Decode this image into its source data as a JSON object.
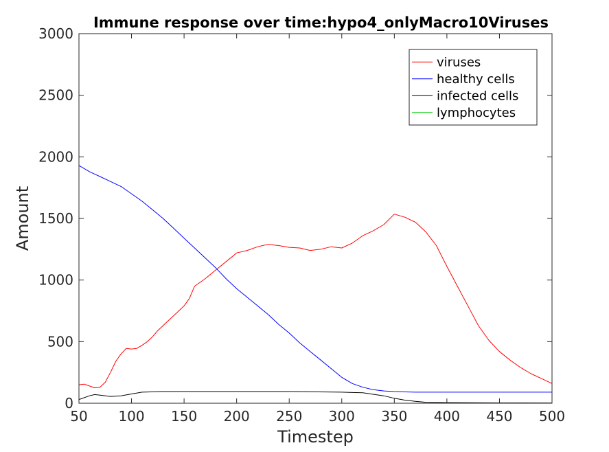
{
  "chart_data": {
    "type": "line",
    "title": "Immune response over time:hypo4_onlyMacro10Viruses",
    "xlabel": "Timestep",
    "ylabel": "Amount",
    "xlim": [
      50,
      500
    ],
    "ylim": [
      0,
      3000
    ],
    "xticks": [
      "50",
      "100",
      "150",
      "200",
      "250",
      "300",
      "350",
      "400",
      "450",
      "500"
    ],
    "yticks": [
      "0",
      "500",
      "1000",
      "1500",
      "2000",
      "2500",
      "3000"
    ],
    "grid": false,
    "legend_position": "top-right",
    "series": [
      {
        "name": "viruses",
        "color": "#ff0000",
        "points": [
          [
            50,
            150
          ],
          [
            55,
            155
          ],
          [
            60,
            140
          ],
          [
            65,
            125
          ],
          [
            70,
            130
          ],
          [
            75,
            170
          ],
          [
            80,
            250
          ],
          [
            85,
            340
          ],
          [
            90,
            400
          ],
          [
            95,
            445
          ],
          [
            100,
            440
          ],
          [
            105,
            445
          ],
          [
            110,
            470
          ],
          [
            115,
            500
          ],
          [
            120,
            540
          ],
          [
            125,
            590
          ],
          [
            130,
            630
          ],
          [
            135,
            670
          ],
          [
            140,
            710
          ],
          [
            145,
            750
          ],
          [
            150,
            790
          ],
          [
            155,
            850
          ],
          [
            160,
            950
          ],
          [
            170,
            1010
          ],
          [
            180,
            1080
          ],
          [
            190,
            1150
          ],
          [
            200,
            1220
          ],
          [
            210,
            1240
          ],
          [
            220,
            1270
          ],
          [
            230,
            1290
          ],
          [
            240,
            1280
          ],
          [
            250,
            1265
          ],
          [
            260,
            1260
          ],
          [
            270,
            1240
          ],
          [
            280,
            1250
          ],
          [
            290,
            1270
          ],
          [
            300,
            1260
          ],
          [
            310,
            1300
          ],
          [
            320,
            1360
          ],
          [
            330,
            1400
          ],
          [
            340,
            1450
          ],
          [
            350,
            1535
          ],
          [
            360,
            1510
          ],
          [
            370,
            1470
          ],
          [
            380,
            1390
          ],
          [
            390,
            1280
          ],
          [
            400,
            1110
          ],
          [
            410,
            950
          ],
          [
            420,
            790
          ],
          [
            430,
            630
          ],
          [
            440,
            510
          ],
          [
            450,
            420
          ],
          [
            460,
            350
          ],
          [
            470,
            290
          ],
          [
            480,
            240
          ],
          [
            490,
            200
          ],
          [
            500,
            160
          ]
        ]
      },
      {
        "name": "healthy cells",
        "color": "#0000ff",
        "points": [
          [
            50,
            1930
          ],
          [
            60,
            1880
          ],
          [
            70,
            1840
          ],
          [
            80,
            1800
          ],
          [
            90,
            1760
          ],
          [
            100,
            1700
          ],
          [
            110,
            1640
          ],
          [
            120,
            1570
          ],
          [
            130,
            1500
          ],
          [
            140,
            1420
          ],
          [
            150,
            1340
          ],
          [
            160,
            1260
          ],
          [
            170,
            1180
          ],
          [
            180,
            1100
          ],
          [
            190,
            1010
          ],
          [
            200,
            930
          ],
          [
            210,
            860
          ],
          [
            220,
            790
          ],
          [
            230,
            720
          ],
          [
            240,
            640
          ],
          [
            250,
            570
          ],
          [
            260,
            490
          ],
          [
            270,
            420
          ],
          [
            280,
            350
          ],
          [
            290,
            280
          ],
          [
            300,
            210
          ],
          [
            310,
            160
          ],
          [
            320,
            130
          ],
          [
            330,
            110
          ],
          [
            340,
            100
          ],
          [
            350,
            95
          ],
          [
            360,
            92
          ],
          [
            370,
            90
          ],
          [
            380,
            90
          ],
          [
            500,
            90
          ]
        ]
      },
      {
        "name": "infected cells",
        "color": "#000000",
        "points": [
          [
            50,
            30
          ],
          [
            60,
            60
          ],
          [
            65,
            70
          ],
          [
            70,
            65
          ],
          [
            80,
            55
          ],
          [
            90,
            60
          ],
          [
            100,
            75
          ],
          [
            110,
            90
          ],
          [
            130,
            95
          ],
          [
            150,
            95
          ],
          [
            200,
            95
          ],
          [
            250,
            95
          ],
          [
            300,
            90
          ],
          [
            320,
            85
          ],
          [
            340,
            60
          ],
          [
            350,
            40
          ],
          [
            360,
            25
          ],
          [
            370,
            15
          ],
          [
            380,
            8
          ],
          [
            400,
            5
          ],
          [
            450,
            3
          ],
          [
            500,
            2
          ]
        ]
      },
      {
        "name": "lymphocytes",
        "color": "#00cc00",
        "points": [
          [
            50,
            0
          ],
          [
            500,
            0
          ]
        ]
      }
    ]
  }
}
